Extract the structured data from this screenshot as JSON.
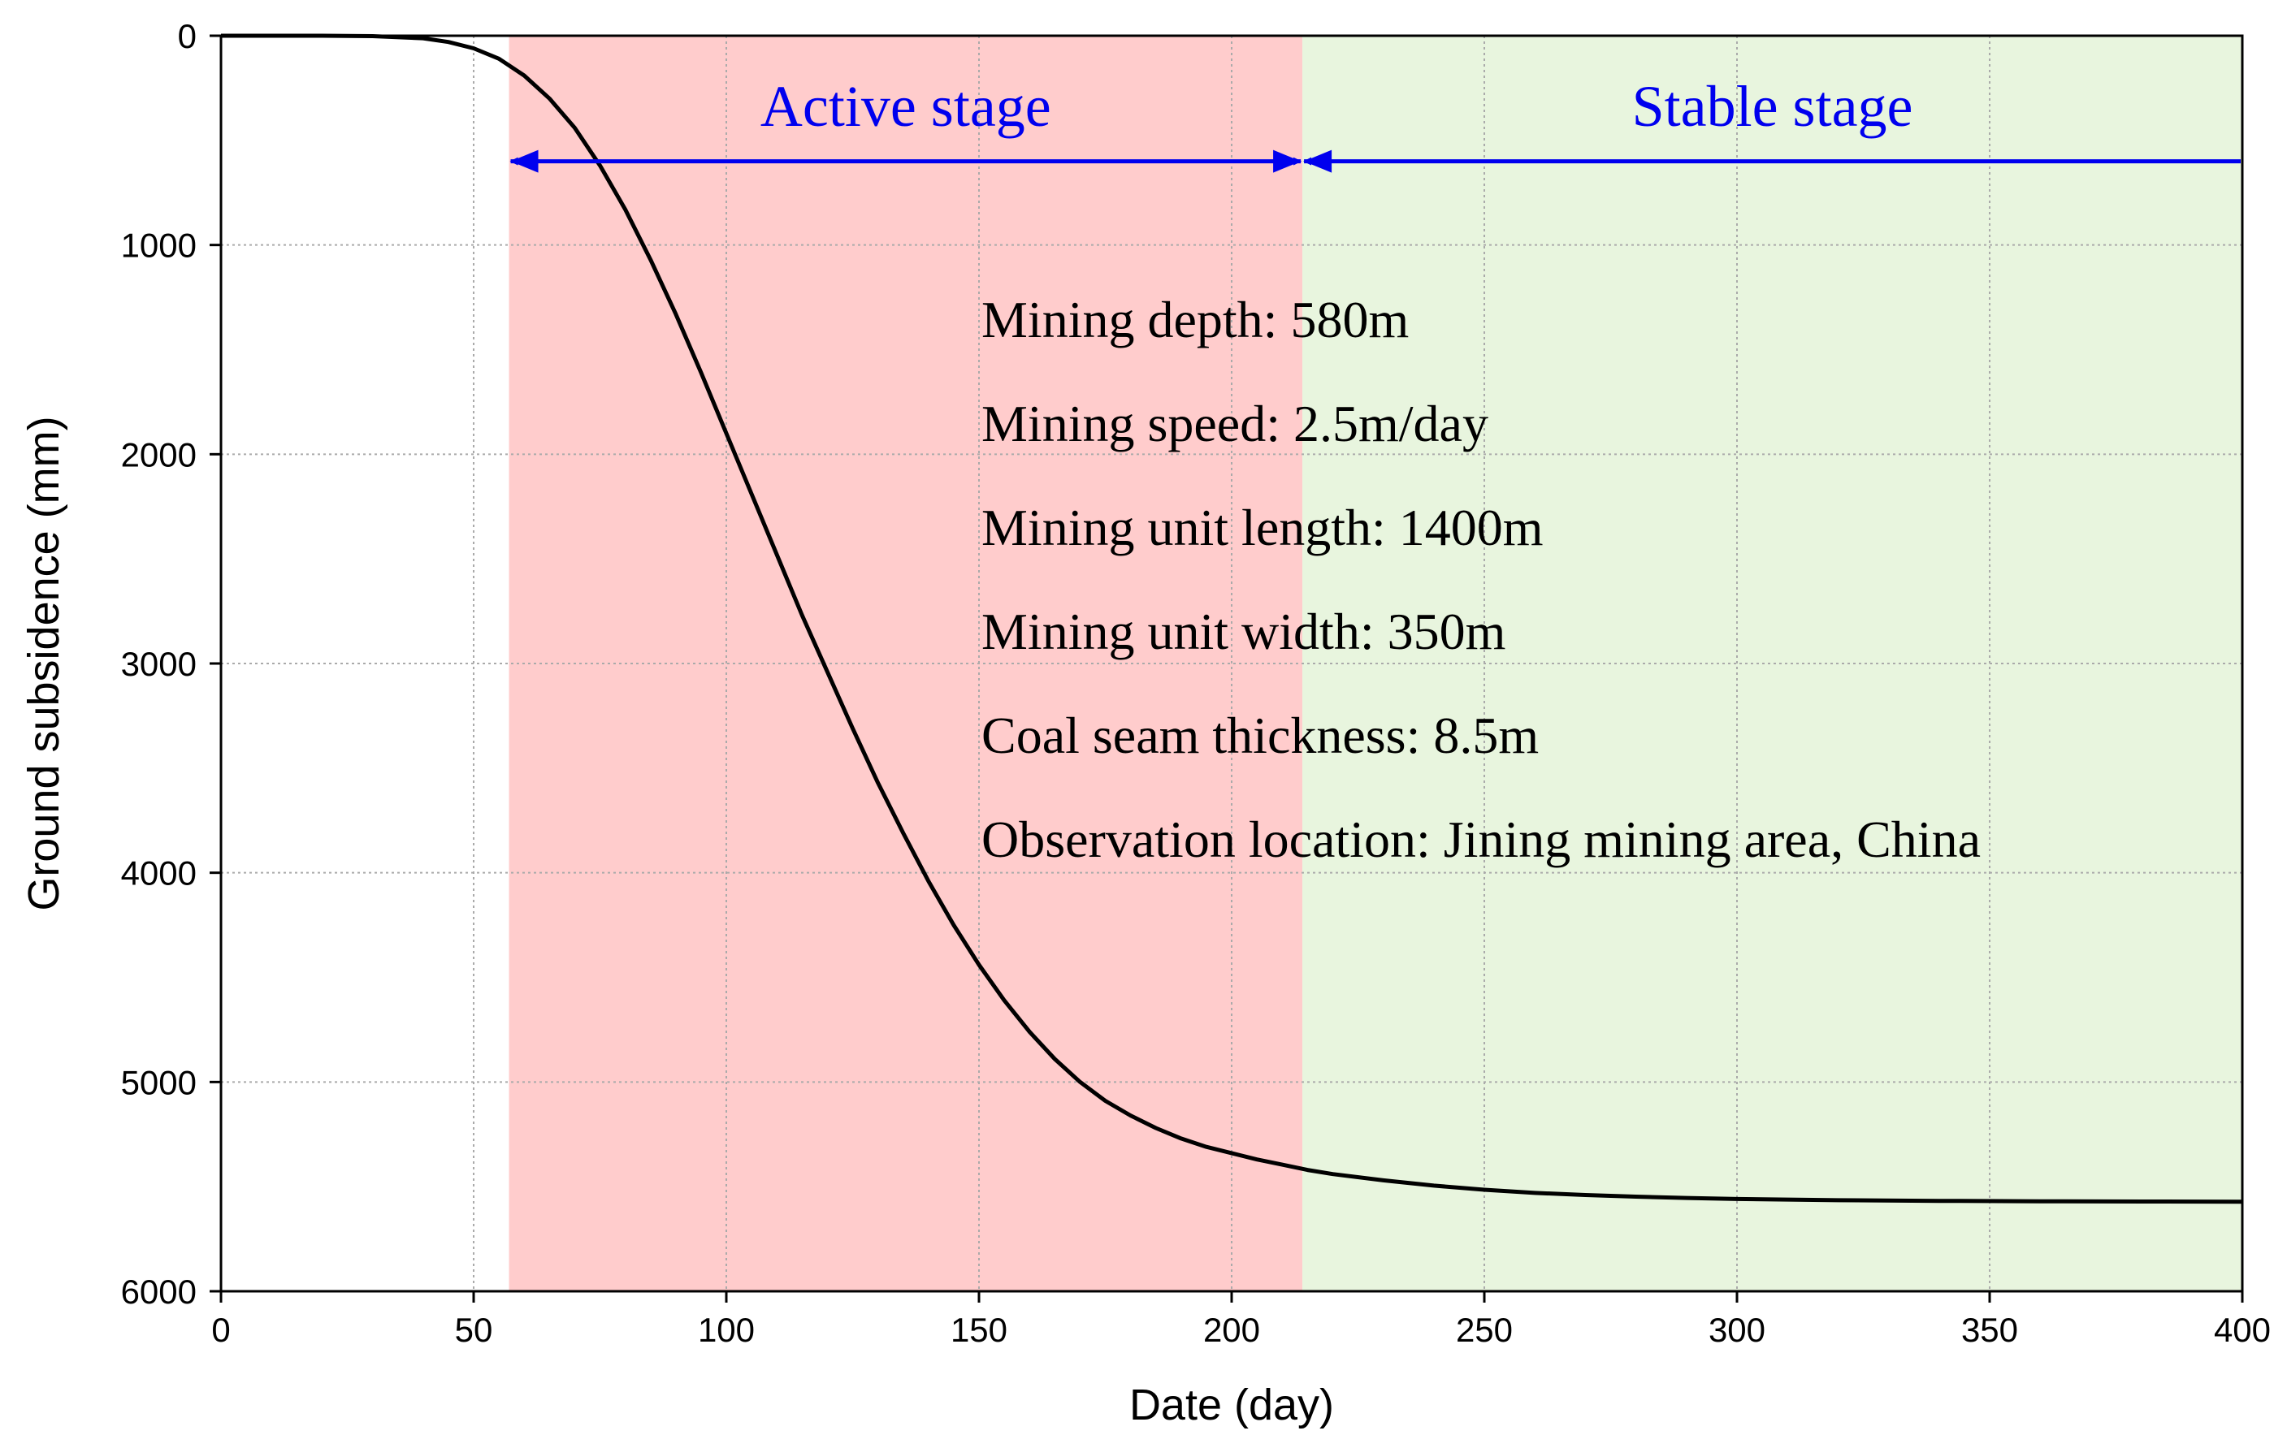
{
  "chart_data": {
    "type": "line",
    "title": "",
    "xlabel": "Date (day)",
    "ylabel": "Ground subsidence (mm)",
    "xlim": [
      0,
      400
    ],
    "ylim": [
      0,
      6000
    ],
    "y_inverted": true,
    "xticks": [
      0,
      50,
      100,
      150,
      200,
      250,
      300,
      350,
      400
    ],
    "yticks": [
      0,
      1000,
      2000,
      3000,
      4000,
      5000,
      6000
    ],
    "grid": true,
    "series": [
      {
        "name": "Ground subsidence",
        "color": "#000000",
        "x": [
          0,
          20,
          30,
          40,
          45,
          50,
          55,
          60,
          65,
          70,
          75,
          80,
          85,
          90,
          95,
          100,
          105,
          110,
          115,
          120,
          125,
          130,
          135,
          140,
          145,
          150,
          155,
          160,
          165,
          170,
          175,
          180,
          185,
          190,
          195,
          200,
          205,
          210,
          215,
          220,
          230,
          240,
          250,
          260,
          270,
          280,
          290,
          300,
          320,
          340,
          360,
          380,
          400
        ],
        "y": [
          0,
          0,
          2,
          12,
          30,
          60,
          110,
          190,
          300,
          440,
          620,
          830,
          1070,
          1330,
          1610,
          1900,
          2190,
          2480,
          2770,
          3040,
          3310,
          3570,
          3810,
          4040,
          4250,
          4440,
          4610,
          4760,
          4890,
          5000,
          5090,
          5160,
          5220,
          5270,
          5310,
          5340,
          5370,
          5395,
          5420,
          5440,
          5470,
          5495,
          5515,
          5530,
          5540,
          5548,
          5554,
          5559,
          5565,
          5568,
          5570,
          5571,
          5572
        ]
      }
    ],
    "regions": [
      {
        "name": "Active stage",
        "x_start": 57,
        "x_end": 214,
        "color": "#ffcccc"
      },
      {
        "name": "Stable stage",
        "x_start": 214,
        "x_end": 400,
        "color": "#e8f5de"
      }
    ],
    "arrows": [
      {
        "name": "active-stage-arrow",
        "x_start": 57,
        "x_end": 214,
        "y": 600,
        "color": "#0000ee"
      },
      {
        "name": "stable-stage-arrow",
        "x_start": 214,
        "x_end": 400,
        "y": 600,
        "color": "#0000ee"
      }
    ],
    "stage_labels": {
      "active": "Active stage",
      "stable": "Stable stage"
    },
    "annotations": [
      "Mining depth: 580m",
      "Mining speed: 2.5m/day",
      "Mining unit length: 1400m",
      "Mining unit width: 350m",
      "Coal seam thickness: 8.5m",
      "Observation location: Jining mining area, China"
    ]
  }
}
